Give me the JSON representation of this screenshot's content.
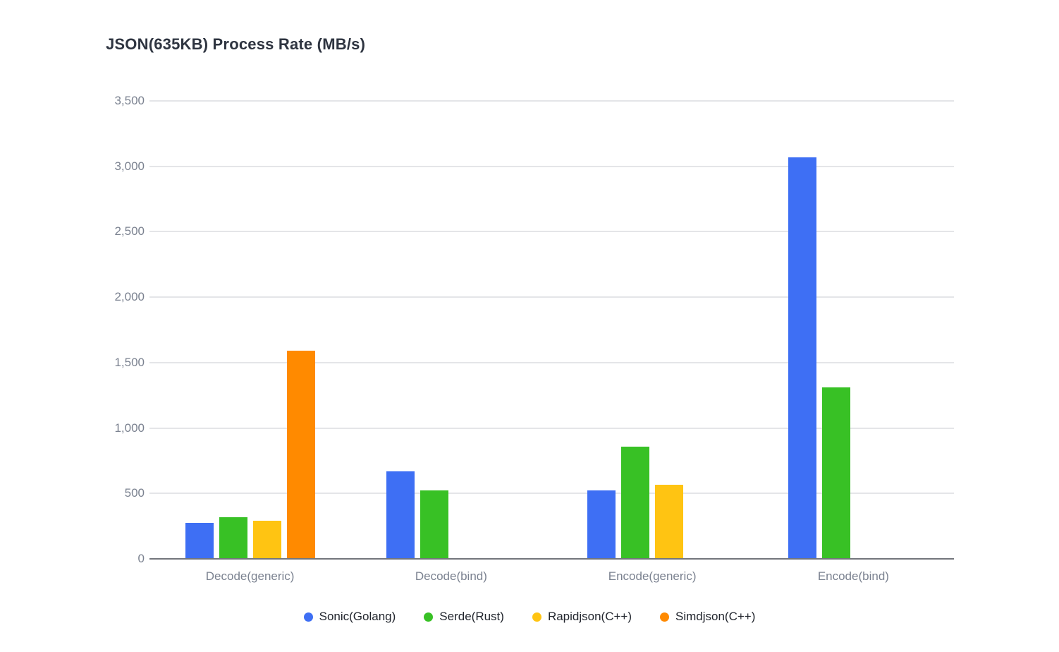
{
  "page": {
    "background": "#ffffff"
  },
  "chart_data": {
    "type": "bar",
    "title": "JSON(635KB) Process Rate (MB/s)",
    "categories": [
      "Decode(generic)",
      "Decode(bind)",
      "Encode(generic)",
      "Encode(bind)"
    ],
    "series": [
      {
        "name": "Sonic(Golang)",
        "color": "#3e6ff4",
        "values": [
          275,
          668,
          522,
          3068
        ]
      },
      {
        "name": "Serde(Rust)",
        "color": "#38c125",
        "values": [
          318,
          524,
          855,
          1312
        ]
      },
      {
        "name": "Rapidjson(C++)",
        "color": "#ffc412",
        "values": [
          290,
          null,
          564,
          null
        ]
      },
      {
        "name": "Simdjson(C++)",
        "color": "#ff8a00",
        "values": [
          1590,
          null,
          null,
          null
        ]
      }
    ],
    "xlabel": "",
    "ylabel": "",
    "ylim": [
      0,
      3500
    ],
    "ytick_interval": 500,
    "ytick_labels": [
      "0",
      "500",
      "1,000",
      "1,500",
      "2,000",
      "2,500",
      "3,000",
      "3,500"
    ],
    "grid": true,
    "legend_position": "bottom",
    "colors": {
      "title_text": "#2e3440",
      "axis_text": "#7b8290",
      "legend_text": "#22262e",
      "gridline": "#e4e5e8",
      "baseline": "#73767c"
    }
  }
}
